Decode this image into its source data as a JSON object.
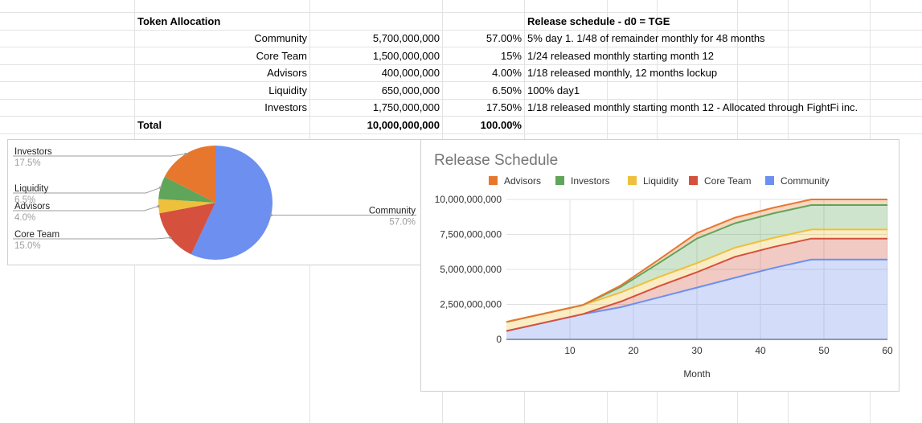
{
  "table": {
    "header_left": "Token Allocation",
    "header_right": "Release schedule - d0 = TGE",
    "rows": [
      {
        "name": "Community",
        "amount": "5,700,000,000",
        "pct": "57.00%",
        "schedule": "5% day 1. 1/48 of remainder monthly for 48 months"
      },
      {
        "name": "Core Team",
        "amount": "1,500,000,000",
        "pct": "15%",
        "schedule": "1/24 released monthly starting month 12"
      },
      {
        "name": "Advisors",
        "amount": "400,000,000",
        "pct": "4.00%",
        "schedule": "1/18 released monthly, 12 months lockup"
      },
      {
        "name": "Liquidity",
        "amount": "650,000,000",
        "pct": "6.50%",
        "schedule": "100% day1"
      },
      {
        "name": "Investors",
        "amount": "1,750,000,000",
        "pct": "17.50%",
        "schedule": "1/18 released monthly starting month 12 - Allocated through FightFi inc."
      }
    ],
    "total_label": "Total",
    "total_amount": "10,000,000,000",
    "total_pct": "100.00%"
  },
  "colors": {
    "community": "#6d8fef",
    "core_team": "#d5503d",
    "advisors": "#e8772e",
    "liquidity": "#eec03c",
    "investors": "#5fa55a"
  },
  "chart_data": [
    {
      "type": "pie",
      "slices": [
        {
          "label": "Community",
          "value": 57.0,
          "pct_label": "57.0%",
          "color": "#6d8fef"
        },
        {
          "label": "Core Team",
          "value": 15.0,
          "pct_label": "15.0%",
          "color": "#d5503d"
        },
        {
          "label": "Advisors",
          "value": 4.0,
          "pct_label": "4.0%",
          "color": "#eec03c"
        },
        {
          "label": "Liquidity",
          "value": 6.5,
          "pct_label": "6.5%",
          "color": "#5fa55a"
        },
        {
          "label": "Investors",
          "value": 17.5,
          "pct_label": "17.5%",
          "color": "#e8772e"
        }
      ]
    },
    {
      "type": "area",
      "stacked": true,
      "title": "Release Schedule",
      "xlabel": "Month",
      "ylabel": "",
      "xlim": [
        0,
        60
      ],
      "ylim": [
        0,
        10000000000
      ],
      "x_ticks": [
        10,
        20,
        30,
        40,
        50,
        60
      ],
      "y_ticks": [
        0,
        2500000000,
        5000000000,
        7500000000,
        10000000000
      ],
      "y_tick_labels": [
        "0",
        "2,500,000,000",
        "5,000,000,000",
        "7,500,000,000",
        "10,000,000,000"
      ],
      "legend": [
        "Advisors",
        "Investors",
        "Liquidity",
        "Core Team",
        "Community"
      ],
      "x": [
        0,
        12,
        18,
        24,
        30,
        36,
        42,
        48,
        60
      ],
      "series": [
        {
          "name": "Community",
          "color": "#6d8fef",
          "values": [
            600000000,
            1800000000,
            2300000000,
            3000000000,
            3700000000,
            4400000000,
            5100000000,
            5700000000,
            5700000000
          ]
        },
        {
          "name": "Core Team",
          "color": "#d5503d",
          "values": [
            0,
            0,
            400000000,
            800000000,
            1100000000,
            1500000000,
            1500000000,
            1500000000,
            1500000000
          ]
        },
        {
          "name": "Liquidity",
          "color": "#eec03c",
          "values": [
            650000000,
            650000000,
            650000000,
            650000000,
            650000000,
            650000000,
            650000000,
            650000000,
            650000000
          ]
        },
        {
          "name": "Investors",
          "color": "#5fa55a",
          "values": [
            0,
            0,
            400000000,
            1000000000,
            1750000000,
            1750000000,
            1750000000,
            1750000000,
            1750000000
          ]
        },
        {
          "name": "Advisors",
          "color": "#e8772e",
          "values": [
            0,
            0,
            100000000,
            250000000,
            400000000,
            400000000,
            400000000,
            400000000,
            400000000
          ]
        }
      ]
    }
  ]
}
